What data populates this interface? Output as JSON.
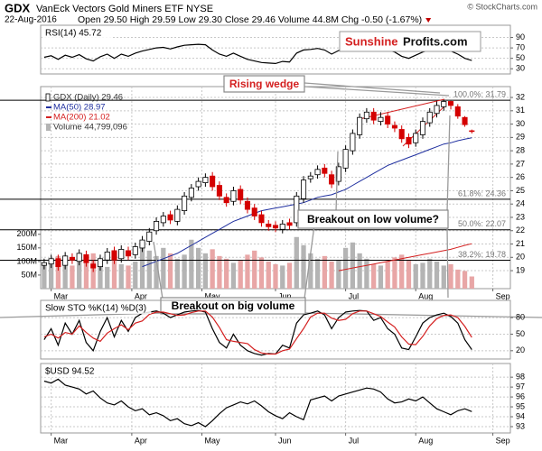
{
  "header": {
    "symbol": "GDX",
    "name": "VanEck Vectors Gold Miners ETF NYSE",
    "date": "22-Aug-2016",
    "quote": "Open 29.50 High 29.59 Low 29.30 Close 29.46 Volume 44.8M Chg -0.50 (-1.67%)",
    "copyright": "© StockCharts.com"
  },
  "logo": {
    "red": "Sunshine",
    "black": "Profits.com"
  },
  "chart_data": [
    {
      "type": "line",
      "title": "RSI(14) 45.72",
      "color": "#000000",
      "values": [
        52,
        55,
        48,
        56,
        52,
        57,
        49,
        45,
        53,
        58,
        50,
        58,
        54,
        60,
        64,
        67,
        70,
        71,
        68,
        72,
        75,
        76,
        77,
        76,
        66,
        58,
        54,
        60,
        54,
        48,
        45,
        42,
        41,
        40,
        44,
        43,
        60,
        66,
        67,
        69,
        66,
        58,
        65,
        71,
        74,
        77,
        78,
        72,
        73,
        66,
        62,
        54,
        50,
        56,
        62,
        66,
        68,
        70,
        64,
        58,
        50,
        45.72
      ],
      "xlim": [
        -0.5,
        66.5
      ],
      "ylim": [
        20,
        110
      ],
      "yticks": [
        30,
        50,
        70,
        90
      ]
    },
    {
      "type": "candlestick",
      "candles": {
        "name": "GDX (Daily) 29.46",
        "up_color": "#ffffff",
        "down_color": "#d40000",
        "open": [
          19.4,
          19.5,
          19.9,
          19.4,
          20.0,
          19.7,
          20.2,
          19.5,
          19.3,
          19.8,
          20.5,
          19.9,
          20.5,
          20.2,
          20.7,
          21.2,
          22.0,
          22.6,
          23.2,
          22.7,
          23.5,
          24.5,
          25.3,
          25.6,
          26.1,
          25.4,
          24.5,
          24.2,
          25.1,
          24.2,
          23.7,
          23.2,
          22.5,
          22.4,
          22.1,
          22.6,
          22.6,
          24.4,
          25.9,
          26.2,
          26.7,
          26.2,
          25.7,
          26.7,
          28.0,
          29.2,
          30.4,
          30.9,
          30.2,
          30.6,
          29.9,
          29.6,
          29.0,
          28.6,
          29.2,
          30.1,
          30.8,
          31.3,
          31.7,
          31.3,
          30.5,
          29.5
        ],
        "high": [
          19.9,
          20.2,
          20.2,
          20.4,
          20.3,
          20.6,
          20.5,
          19.8,
          20.2,
          20.7,
          20.8,
          20.9,
          20.8,
          21.1,
          21.6,
          22.2,
          23.0,
          23.4,
          23.5,
          23.9,
          24.9,
          25.5,
          26.0,
          26.3,
          26.4,
          25.7,
          24.8,
          25.3,
          25.4,
          24.5,
          24.0,
          23.5,
          22.8,
          22.7,
          22.8,
          22.9,
          24.9,
          26.1,
          26.4,
          26.9,
          27.0,
          26.5,
          27.1,
          28.4,
          29.6,
          30.8,
          31.2,
          31.2,
          30.9,
          30.9,
          30.2,
          29.9,
          29.3,
          29.6,
          30.5,
          31.2,
          31.7,
          31.79,
          31.75,
          31.5,
          30.6,
          29.59
        ],
        "low": [
          19.1,
          19.2,
          19.0,
          19.1,
          19.5,
          19.4,
          19.3,
          18.9,
          19.0,
          19.5,
          19.5,
          19.6,
          19.8,
          19.9,
          20.4,
          20.9,
          21.7,
          22.3,
          22.5,
          22.4,
          23.2,
          24.2,
          25.0,
          25.3,
          25.0,
          24.3,
          23.8,
          23.9,
          24.0,
          23.3,
          22.8,
          22.3,
          22.0,
          21.9,
          21.8,
          22.1,
          22.3,
          24.1,
          25.6,
          25.9,
          26.0,
          25.2,
          25.4,
          26.4,
          27.7,
          28.9,
          30.1,
          30.0,
          29.9,
          29.7,
          29.4,
          28.6,
          28.2,
          28.3,
          28.9,
          29.8,
          30.5,
          31.0,
          31.1,
          30.4,
          29.8,
          29.3
        ],
        "close": [
          19.6,
          19.9,
          19.3,
          20.1,
          19.8,
          20.3,
          19.6,
          19.2,
          19.9,
          20.4,
          19.8,
          20.6,
          20.1,
          20.8,
          21.3,
          21.9,
          22.7,
          23.1,
          22.8,
          23.6,
          24.6,
          25.2,
          25.7,
          26.0,
          25.3,
          24.6,
          24.1,
          25.0,
          24.3,
          23.6,
          23.1,
          22.6,
          22.3,
          22.2,
          22.5,
          22.4,
          24.6,
          25.8,
          26.1,
          26.6,
          26.3,
          25.5,
          26.8,
          28.1,
          29.3,
          30.5,
          30.9,
          30.3,
          30.5,
          30.0,
          29.7,
          28.9,
          28.5,
          29.3,
          30.2,
          30.9,
          31.4,
          31.7,
          31.4,
          30.6,
          29.96,
          29.46
        ]
      },
      "lines": [
        {
          "name": "MA(50) 28.97",
          "color": "#1f2f9f",
          "values": [
            null,
            null,
            null,
            null,
            null,
            null,
            null,
            null,
            null,
            null,
            null,
            null,
            null,
            null,
            19.3,
            19.5,
            19.7,
            19.9,
            20.1,
            20.3,
            20.6,
            20.9,
            21.2,
            21.5,
            21.8,
            22.1,
            22.4,
            22.7,
            22.9,
            23.1,
            23.3,
            23.5,
            23.6,
            23.7,
            23.8,
            23.9,
            24.0,
            24.1,
            24.3,
            24.5,
            24.6,
            24.7,
            24.9,
            25.1,
            25.4,
            25.7,
            26.0,
            26.3,
            26.6,
            26.9,
            27.1,
            27.3,
            27.5,
            27.7,
            27.9,
            28.1,
            28.3,
            28.5,
            28.6,
            28.75,
            28.87,
            28.97
          ]
        },
        {
          "name": "MA(200) 21.02",
          "color": "#d42020",
          "values": [
            null,
            null,
            null,
            null,
            null,
            null,
            null,
            null,
            null,
            null,
            null,
            null,
            null,
            null,
            null,
            null,
            null,
            null,
            null,
            null,
            null,
            null,
            null,
            null,
            null,
            null,
            null,
            null,
            null,
            null,
            null,
            null,
            null,
            null,
            null,
            null,
            null,
            null,
            null,
            null,
            null,
            null,
            19.0,
            19.1,
            19.2,
            19.3,
            19.4,
            19.5,
            19.6,
            19.7,
            19.8,
            19.9,
            20.0,
            20.1,
            20.2,
            20.3,
            20.4,
            20.5,
            20.6,
            20.75,
            20.9,
            21.02
          ]
        }
      ],
      "volume": {
        "name": "Volume 44,799,096",
        "color": "#b4b4b4",
        "down_color": "#e8a6a6",
        "values": [
          95,
          110,
          120,
          90,
          85,
          100,
          115,
          130,
          95,
          80,
          105,
          90,
          85,
          100,
          160,
          140,
          120,
          150,
          130,
          110,
          125,
          180,
          150,
          130,
          145,
          120,
          110,
          95,
          105,
          125,
          140,
          115,
          100,
          90,
          85,
          95,
          190,
          160,
          130,
          110,
          120,
          100,
          105,
          150,
          170,
          130,
          110,
          90,
          85,
          100,
          115,
          125,
          105,
          90,
          95,
          110,
          100,
          85,
          90,
          70,
          65,
          44.8
        ]
      },
      "levels": [
        {
          "label": "100.0%: 31.79",
          "value": 31.79
        },
        {
          "label": "61.8%: 24.36",
          "value": 24.36
        },
        {
          "label": "50.0%: 22.07",
          "value": 22.07
        },
        {
          "label": "38.2%: 19.78",
          "value": 19.78
        }
      ],
      "annotations": [
        "Rising wedge",
        "Breakout on low volume?",
        "Breakout on big volume"
      ],
      "xlim": [
        -0.5,
        66.5
      ],
      "xticks": [
        {
          "value": 1,
          "label": "Mar"
        },
        {
          "value": 12.5,
          "label": "Apr"
        },
        {
          "value": 22.5,
          "label": "May"
        },
        {
          "value": 33,
          "label": "Jun"
        },
        {
          "value": 43,
          "label": "Jul"
        },
        {
          "value": 53,
          "label": "Aug"
        },
        {
          "value": 64,
          "label": "Sep"
        }
      ],
      "ylim": [
        17.65,
        32.68
      ],
      "yticks": [
        19,
        20,
        21,
        22,
        23,
        24,
        25,
        26,
        27,
        28,
        29,
        30,
        31,
        32
      ],
      "y2lim": [
        0,
        737
      ],
      "y2ticks": [
        {
          "value": 50,
          "label": "50M"
        },
        {
          "value": 100,
          "label": "100M"
        },
        {
          "value": 150,
          "label": "150M"
        },
        {
          "value": 200,
          "label": "200M"
        }
      ]
    },
    {
      "type": "line",
      "title": "Slow STO %K(14) %D(3)",
      "series": [
        {
          "color": "#000000",
          "values": [
            40,
            60,
            30,
            70,
            50,
            75,
            35,
            20,
            55,
            80,
            45,
            75,
            55,
            80,
            88,
            90,
            92,
            88,
            80,
            85,
            90,
            92,
            93,
            90,
            60,
            35,
            25,
            50,
            30,
            20,
            15,
            12,
            15,
            14,
            30,
            25,
            70,
            85,
            88,
            92,
            85,
            60,
            80,
            90,
            92,
            93,
            92,
            75,
            80,
            60,
            50,
            25,
            22,
            45,
            70,
            80,
            85,
            88,
            82,
            70,
            40,
            22
          ]
        },
        {
          "color": "#d42020",
          "values": [
            45,
            50,
            43,
            53,
            50,
            65,
            53,
            43,
            37,
            52,
            60,
            67,
            58,
            70,
            74,
            86,
            90,
            90,
            87,
            84,
            85,
            89,
            92,
            92,
            81,
            62,
            40,
            37,
            35,
            33,
            22,
            16,
            14,
            14,
            20,
            23,
            42,
            60,
            81,
            88,
            88,
            79,
            75,
            77,
            87,
            92,
            92,
            87,
            82,
            72,
            63,
            45,
            32,
            31,
            46,
            65,
            78,
            84,
            85,
            80,
            64,
            44
          ]
        }
      ],
      "xlim": [
        -0.5,
        66.5
      ],
      "ylim": [
        5,
        108
      ],
      "yticks": [
        20,
        50,
        80
      ]
    },
    {
      "type": "line",
      "title": "$USD 94.52",
      "color": "#000000",
      "values": [
        97.6,
        97.4,
        97.8,
        97.2,
        97.0,
        96.8,
        96.3,
        96.6,
        95.9,
        95.4,
        95.2,
        95.6,
        95.0,
        94.6,
        94.8,
        94.2,
        94.4,
        94.1,
        93.6,
        93.8,
        93.3,
        93.1,
        93.4,
        93.0,
        93.6,
        94.3,
        94.9,
        95.2,
        95.5,
        95.3,
        95.6,
        95.1,
        94.5,
        94.1,
        93.8,
        94.4,
        94.0,
        93.7,
        95.7,
        95.9,
        96.1,
        95.6,
        96.1,
        96.3,
        96.5,
        96.7,
        96.9,
        96.8,
        96.5,
        95.8,
        95.4,
        95.5,
        95.8,
        95.6,
        96.0,
        95.4,
        94.8,
        94.5,
        94.2,
        94.6,
        94.8,
        94.52
      ],
      "xlim": [
        -0.5,
        66.5
      ],
      "xticks": [
        {
          "value": 1,
          "label": "Mar"
        },
        {
          "value": 12.5,
          "label": "Apr"
        },
        {
          "value": 22.5,
          "label": "May"
        },
        {
          "value": 33,
          "label": "Jun"
        },
        {
          "value": 43,
          "label": "Jul"
        },
        {
          "value": 53,
          "label": "Aug"
        },
        {
          "value": 64,
          "label": "Sep"
        }
      ],
      "ylim": [
        92.36,
        99.2
      ],
      "yticks": [
        93,
        94,
        95,
        96,
        97,
        98
      ]
    }
  ]
}
